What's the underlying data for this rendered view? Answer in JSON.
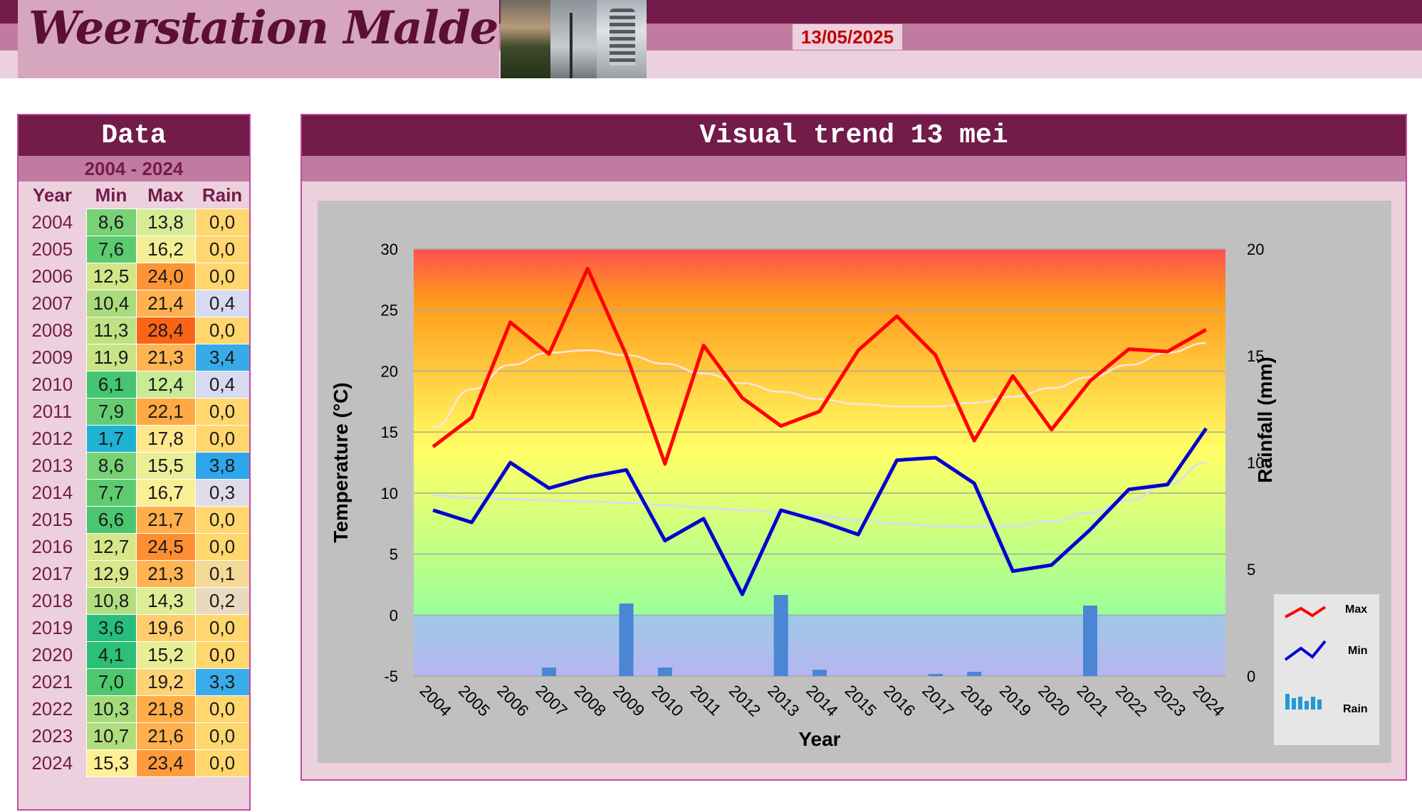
{
  "header": {
    "site_title": "Weerstation Malderen",
    "date": "13/05/2025",
    "colors": {
      "dark": "#731b49",
      "mid": "#c27ba0",
      "light": "#ecd0de",
      "date_text": "#c00000"
    }
  },
  "data_table": {
    "title": "Data",
    "range": "2004 - 2024",
    "columns": [
      "Year",
      "Min",
      "Max",
      "Rain"
    ],
    "rows": [
      [
        "2004",
        "8,6",
        "13,8",
        "0,0"
      ],
      [
        "2005",
        "7,6",
        "16,2",
        "0,0"
      ],
      [
        "2006",
        "12,5",
        "24,0",
        "0,0"
      ],
      [
        "2007",
        "10,4",
        "21,4",
        "0,4"
      ],
      [
        "2008",
        "11,3",
        "28,4",
        "0,0"
      ],
      [
        "2009",
        "11,9",
        "21,3",
        "3,4"
      ],
      [
        "2010",
        "6,1",
        "12,4",
        "0,4"
      ],
      [
        "2011",
        "7,9",
        "22,1",
        "0,0"
      ],
      [
        "2012",
        "1,7",
        "17,8",
        "0,0"
      ],
      [
        "2013",
        "8,6",
        "15,5",
        "3,8"
      ],
      [
        "2014",
        "7,7",
        "16,7",
        "0,3"
      ],
      [
        "2015",
        "6,6",
        "21,7",
        "0,0"
      ],
      [
        "2016",
        "12,7",
        "24,5",
        "0,0"
      ],
      [
        "2017",
        "12,9",
        "21,3",
        "0,1"
      ],
      [
        "2018",
        "10,8",
        "14,3",
        "0,2"
      ],
      [
        "2019",
        "3,6",
        "19,6",
        "0,0"
      ],
      [
        "2020",
        "4,1",
        "15,2",
        "0,0"
      ],
      [
        "2021",
        "7,0",
        "19,2",
        "3,3"
      ],
      [
        "2022",
        "10,3",
        "21,8",
        "0,0"
      ],
      [
        "2023",
        "10,7",
        "21,6",
        "0,0"
      ],
      [
        "2024",
        "15,3",
        "23,4",
        "0,0"
      ]
    ]
  },
  "chart_panel": {
    "title": "Visual trend 13 mei"
  },
  "chart_data": {
    "type": "line",
    "title": "",
    "xlabel": "Year",
    "ylabel": "Temperature (°C)",
    "y2label": "Rainfall (mm)",
    "ylim": [
      -5,
      30
    ],
    "yticks": [
      -5,
      0,
      5,
      10,
      15,
      20,
      25,
      30
    ],
    "y2lim": [
      0,
      20
    ],
    "y2ticks": [
      0,
      5,
      10,
      15,
      20
    ],
    "x": [
      "2004",
      "2005",
      "2006",
      "2007",
      "2008",
      "2009",
      "2010",
      "2011",
      "2012",
      "2013",
      "2014",
      "2015",
      "2016",
      "2017",
      "2018",
      "2019",
      "2020",
      "2021",
      "2022",
      "2023",
      "2024"
    ],
    "series": [
      {
        "name": "Max",
        "kind": "line",
        "axis": "y",
        "color": "#ff0000",
        "values": [
          13.8,
          16.2,
          24.0,
          21.4,
          28.4,
          21.3,
          12.4,
          22.1,
          17.8,
          15.5,
          16.7,
          21.7,
          24.5,
          21.3,
          14.3,
          19.6,
          15.2,
          19.2,
          21.8,
          21.6,
          23.4
        ]
      },
      {
        "name": "Min",
        "kind": "line",
        "axis": "y",
        "color": "#0000d0",
        "values": [
          8.6,
          7.6,
          12.5,
          10.4,
          11.3,
          11.9,
          6.1,
          7.9,
          1.7,
          8.6,
          7.7,
          6.6,
          12.7,
          12.9,
          10.8,
          3.6,
          4.1,
          7.0,
          10.3,
          10.7,
          15.3
        ]
      },
      {
        "name": "Rain",
        "kind": "bar",
        "axis": "y2",
        "color": "#4a86d4",
        "values": [
          0.0,
          0.0,
          0.0,
          0.4,
          0.0,
          3.4,
          0.4,
          0.0,
          0.0,
          3.8,
          0.3,
          0.0,
          0.0,
          0.1,
          0.2,
          0.0,
          0.0,
          3.3,
          0.0,
          0.0,
          0.0
        ]
      }
    ],
    "trendlines": [
      {
        "of": "Max",
        "color": "#ffe4e4",
        "values": [
          15.4,
          18.5,
          20.5,
          21.5,
          21.7,
          21.3,
          20.6,
          19.8,
          19.0,
          18.3,
          17.7,
          17.3,
          17.1,
          17.1,
          17.4,
          17.9,
          18.6,
          19.5,
          20.5,
          21.5,
          22.3
        ]
      },
      {
        "of": "Min",
        "color": "#d6dcff",
        "values": [
          9.8,
          9.6,
          9.5,
          9.4,
          9.3,
          9.2,
          9.0,
          8.8,
          8.6,
          8.4,
          8.1,
          7.8,
          7.5,
          7.3,
          7.2,
          7.3,
          7.7,
          8.4,
          9.4,
          10.7,
          12.5
        ]
      }
    ],
    "grid": true,
    "legend": {
      "placement": "bottom-right",
      "entries": [
        "Max",
        "Min",
        "Rain"
      ]
    }
  }
}
